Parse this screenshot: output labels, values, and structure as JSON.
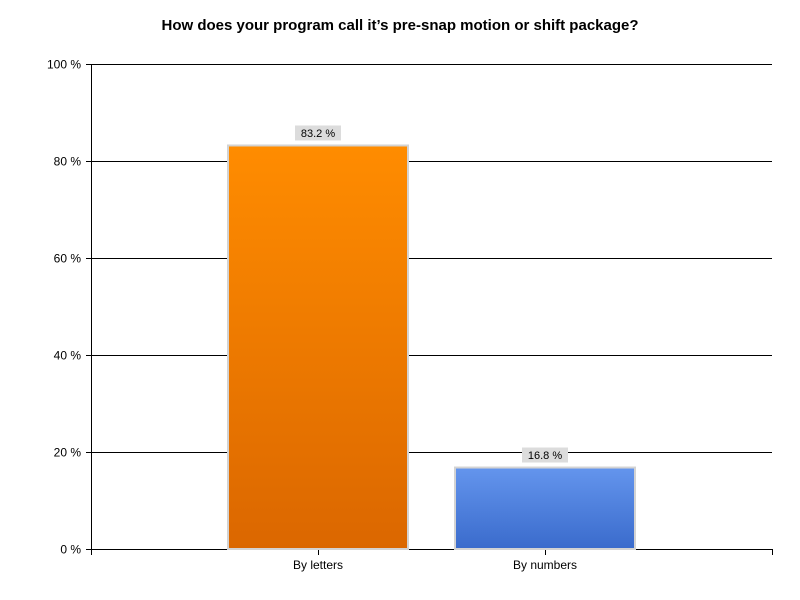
{
  "chart_data": {
    "type": "bar",
    "title": "How does your program call it’s pre-snap motion or shift package?",
    "xlabel": "",
    "ylabel": "",
    "categories": [
      "By letters",
      "By numbers"
    ],
    "values": [
      83.2,
      16.8
    ],
    "data_labels": [
      "83.2 %",
      "16.8 %"
    ],
    "ylim": [
      0,
      100
    ],
    "yticks": [
      0,
      20,
      40,
      60,
      80,
      100
    ],
    "ytick_labels": [
      "0 %",
      "20 %",
      "40 %",
      "60 %",
      "80 %",
      "100 %"
    ],
    "grid": true,
    "colors": [
      {
        "top": "#ff8c00",
        "bottom": "#db6700"
      },
      {
        "top": "#6495ed",
        "bottom": "#3a6bcc"
      }
    ],
    "bar_border": "#d3d3d3",
    "label_bg": "#dcdcdc"
  }
}
